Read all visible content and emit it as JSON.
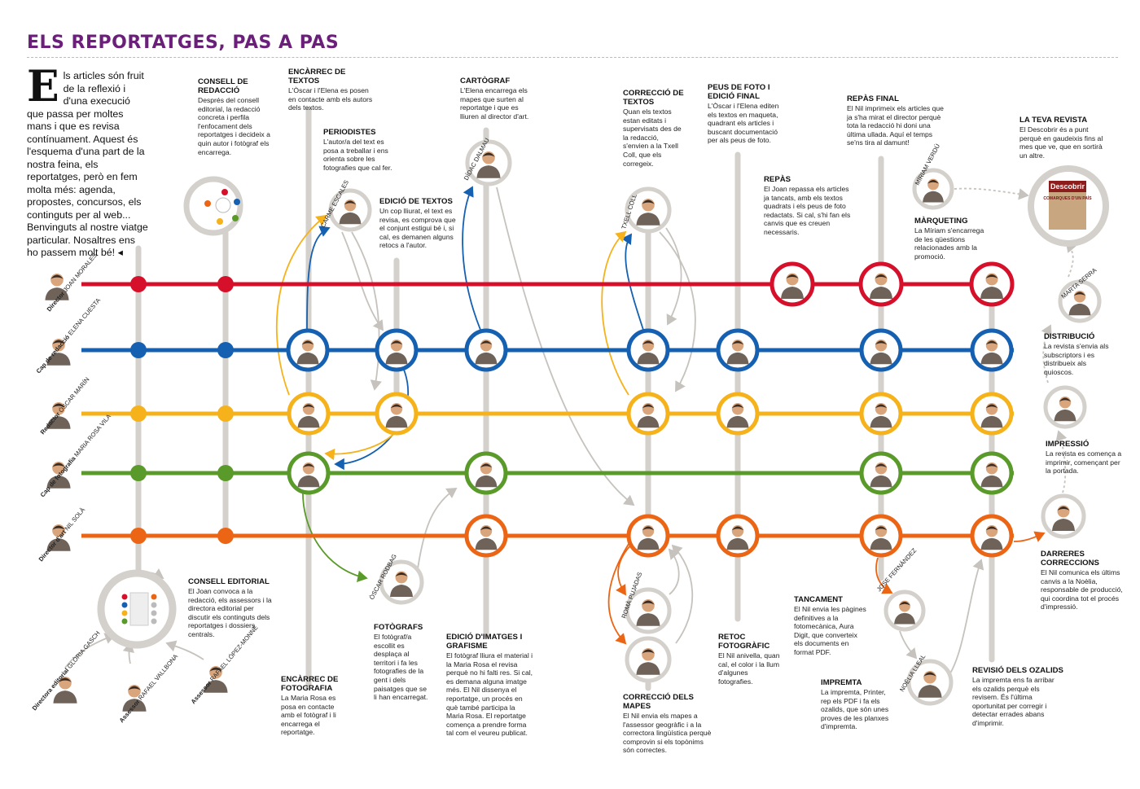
{
  "title": "ELS REPORTATGES, PAS A PAS",
  "intro": {
    "dropcap": "E",
    "text": "ls articles són fruit de la reflexió i d'una execució que passa per moltes mans i que es revisa contínuament. Aquest és l'esquema d'una part de la nostra feina, els reportatges, però en fem molta més: agenda, propostes, concursos, els continguts per al web... Benvinguts al nostre viatge particular. Nosaltres ens ho passem molt bé! ◂"
  },
  "colors": {
    "red": "#d6102b",
    "blue": "#1560b0",
    "yellow": "#f6b21b",
    "green": "#5a9a2a",
    "orange": "#ec6514",
    "grey": "#d4d0cb",
    "title": "#6b1f7b"
  },
  "people": {
    "joan": {
      "role": "Director",
      "name": "JOAN MORALES"
    },
    "elena": {
      "role": "Cap de redacció",
      "name": "ELENA CUESTA"
    },
    "oscar": {
      "role": "Redactor",
      "name": "ÒSCAR MARÍN"
    },
    "mariarosa": {
      "role": "Cap de fotografia",
      "name": "MARIA ROSA VILA"
    },
    "nil": {
      "role": "Director d'art",
      "name": "NIL SOLÀ"
    },
    "gloria": {
      "role": "Directora editorial",
      "name": "GLÒRIA GASCH"
    },
    "rafael_v": {
      "role": "Assessor",
      "name": "RAFAEL VALLBONA"
    },
    "rafael_l": {
      "role": "Assessor",
      "name": "RAFAEL LÓPEZ-MONNÉ"
    }
  },
  "external_labels": {
    "carme": "CARME ESCALES",
    "didac": "DÍDAC DALMAU",
    "txell": "TXELL COLL",
    "miriam": "MÍRIAM VERDÚ",
    "marta": "MARTA SERRA",
    "oscar_rodbag": "ÒSCAR RODBAG",
    "roma": "ROMÀ PUJADAS",
    "jose": "JOSE FERNÁNDEZ",
    "noelia": "NOÈLIA LLEAL"
  },
  "magazine": {
    "line1": "Descobrir",
    "line2": "COMARQUES D'UN PAÍS"
  },
  "steps": {
    "consell_redaccio": {
      "title": "CONSELL DE REDACCIÓ",
      "text": "Després del consell editorial, la redacció concreta i perfila l'enfocament dels reportatges i decideix a quin autor i fotògraf els encarrega."
    },
    "encarrec_textos": {
      "title": "ENCÀRREC DE TEXTOS",
      "text": "L'Òscar i l'Elena es posen en contacte amb els autors dels textos."
    },
    "periodistes": {
      "title": "PERIODISTES",
      "text": "L'autor/a del text es posa a treballar i ens orienta sobre les fotografies que cal fer."
    },
    "edicio_textos": {
      "title": "EDICIÓ DE TEXTOS",
      "text": "Un cop lliurat, el text es revisa, es comprova que el conjunt estigui bé i, si cal, es demanen alguns retocs a l'autor."
    },
    "cartograf": {
      "title": "CARTÒGRAF",
      "text": "L'Elena encarrega els mapes que surten al reportatge i que es lliuren al director d'art."
    },
    "correccio_textos": {
      "title": "CORRECCIÓ DE TEXTOS",
      "text": "Quan els textos estan editats i supervisats des de la redacció, s'envien a la Txell Coll, que els corregeix."
    },
    "peus_foto": {
      "title": "PEUS DE FOTO I EDICIÓ FINAL",
      "text": "L'Òscar i l'Elena editen els textos en maqueta, quadrant els articles i buscant documentació per als peus de foto."
    },
    "repas": {
      "title": "REPÀS",
      "text": "El Joan repassa els articles ja tancats, amb els textos quadrats i els peus de foto redactats. Si cal, s'hi fan els canvis que es creuen necessaris."
    },
    "repas_final": {
      "title": "REPÀS FINAL",
      "text": "El Nil imprimeix els articles que ja s'ha mirat el director perquè tota la redacció hi doni una última ullada. Aquí el temps se'ns tira al damunt!"
    },
    "marqueting": {
      "title": "MÀRQUETING",
      "text": "La Míriam s'encarrega de les qüestions relacionades amb la promoció."
    },
    "teva_revista": {
      "title": "LA TEVA REVISTA",
      "text": "El Descobrir és a punt perquè en gaudeixis fins al mes que ve, que en sortirà un altre."
    },
    "distribucio": {
      "title": "DISTRIBUCIÓ",
      "text": "La revista s'envia als subscriptors i es distribueix als quioscos."
    },
    "impressio": {
      "title": "IMPRESSIÓ",
      "text": "La revista es comença a imprimir, començant per la portada."
    },
    "darreres_correccions": {
      "title": "DARRERES CORRECCIONS",
      "text": "El Nil comunica els últims canvis a la Noèlia, responsable de producció, qui coordina tot el procés d'impressió."
    },
    "consell_editorial": {
      "title": "CONSELL EDITORIAL",
      "text": "El Joan convoca a la redacció, els assessors i la directora editorial per discutir els continguts dels reportatges i dossiers centrals."
    },
    "encarrec_fotografia": {
      "title": "ENCÀRREC DE FOTOGRAFIA",
      "text": "La Maria Rosa es posa en contacte amb el fotògraf i li encarrega el reportatge."
    },
    "fotografs": {
      "title": "FOTÒGRAFS",
      "text": "El fotògraf/a escollit es desplaça al territori i fa les fotografies de la gent i dels paisatges que se li han encarregat."
    },
    "edicio_imatges": {
      "title": "EDICIÓ D'IMATGES I GRAFISME",
      "text": "El fotògraf lliura el material i la Maria Rosa el revisa perquè no hi falti res. Si cal, es demana alguna imatge més. El Nil dissenya el reportatge, un procés en què també participa la Maria Rosa. El reportatge comença a prendre forma tal com el veureu publicat."
    },
    "correccio_mapes": {
      "title": "CORRECCIÓ DELS MAPES",
      "text": "El Nil envia els mapes a l'assessor geogràfic i a la correctora lingüística perquè comprovin si els topònims són correctes."
    },
    "retoc": {
      "title": "RETOC FOTOGRÀFIC",
      "text": "El Nil anivella, quan cal, el color i la llum d'algunes fotografies."
    },
    "tancament": {
      "title": "TANCAMENT",
      "text": "El Nil envia les pàgines definitives a la fotomecànica, Aura Digit, que converteix els documents en format PDF."
    },
    "impremta": {
      "title": "IMPREMTA",
      "text": "La impremta, Printer, rep els PDF i fa els ozalids, que són unes proves de les planxes d'impremta."
    },
    "revisio_ozalids": {
      "title": "REVISIÓ DELS OZALIDS",
      "text": "La impremta ens fa arribar els ozalids perquè els revisem. És l'última oportunitat per corregir i detectar errades abans d'imprimir."
    }
  }
}
